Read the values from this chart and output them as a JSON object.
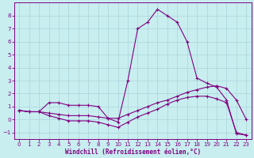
{
  "title": "",
  "xlabel": "Windchill (Refroidissement éolien,°C)",
  "ylabel": "",
  "background_color": "#c8eef0",
  "line_color": "#800080",
  "grid_color": "#b0d8dc",
  "xlim": [
    -0.5,
    23.5
  ],
  "ylim": [
    -1.5,
    9.0
  ],
  "xticks": [
    0,
    1,
    2,
    3,
    4,
    5,
    6,
    7,
    8,
    9,
    10,
    11,
    12,
    13,
    14,
    15,
    16,
    17,
    18,
    19,
    20,
    21,
    22,
    23
  ],
  "yticks": [
    -1,
    0,
    1,
    2,
    3,
    4,
    5,
    6,
    7,
    8
  ],
  "series": [
    {
      "x": [
        0,
        1,
        2,
        3,
        4,
        5,
        6,
        7,
        8,
        9,
        10,
        11,
        12,
        13,
        14,
        15,
        16,
        17,
        18,
        19,
        20,
        21,
        22,
        23
      ],
      "y": [
        0.7,
        0.6,
        0.6,
        1.3,
        1.3,
        1.1,
        1.1,
        1.1,
        1.0,
        0.1,
        -0.2,
        3.0,
        7.0,
        7.5,
        8.5,
        8.0,
        7.5,
        6.0,
        3.2,
        2.8,
        2.5,
        1.5,
        -1.1,
        -1.2
      ]
    },
    {
      "x": [
        0,
        1,
        2,
        3,
        4,
        5,
        6,
        7,
        8,
        9,
        10,
        11,
        12,
        13,
        14,
        15,
        16,
        17,
        18,
        19,
        20,
        21,
        22,
        23
      ],
      "y": [
        0.7,
        0.6,
        0.6,
        0.5,
        0.4,
        0.3,
        0.3,
        0.3,
        0.2,
        0.1,
        0.1,
        0.4,
        0.7,
        1.0,
        1.3,
        1.5,
        1.8,
        2.1,
        2.3,
        2.5,
        2.6,
        2.4,
        1.5,
        0.0
      ]
    },
    {
      "x": [
        0,
        1,
        2,
        3,
        4,
        5,
        6,
        7,
        8,
        9,
        10,
        11,
        12,
        13,
        14,
        15,
        16,
        17,
        18,
        19,
        20,
        21,
        22,
        23
      ],
      "y": [
        0.7,
        0.6,
        0.6,
        0.3,
        0.1,
        -0.1,
        -0.1,
        -0.1,
        -0.2,
        -0.4,
        -0.6,
        -0.2,
        0.2,
        0.5,
        0.8,
        1.2,
        1.5,
        1.7,
        1.8,
        1.8,
        1.6,
        1.3,
        -1.0,
        -1.2
      ]
    }
  ]
}
